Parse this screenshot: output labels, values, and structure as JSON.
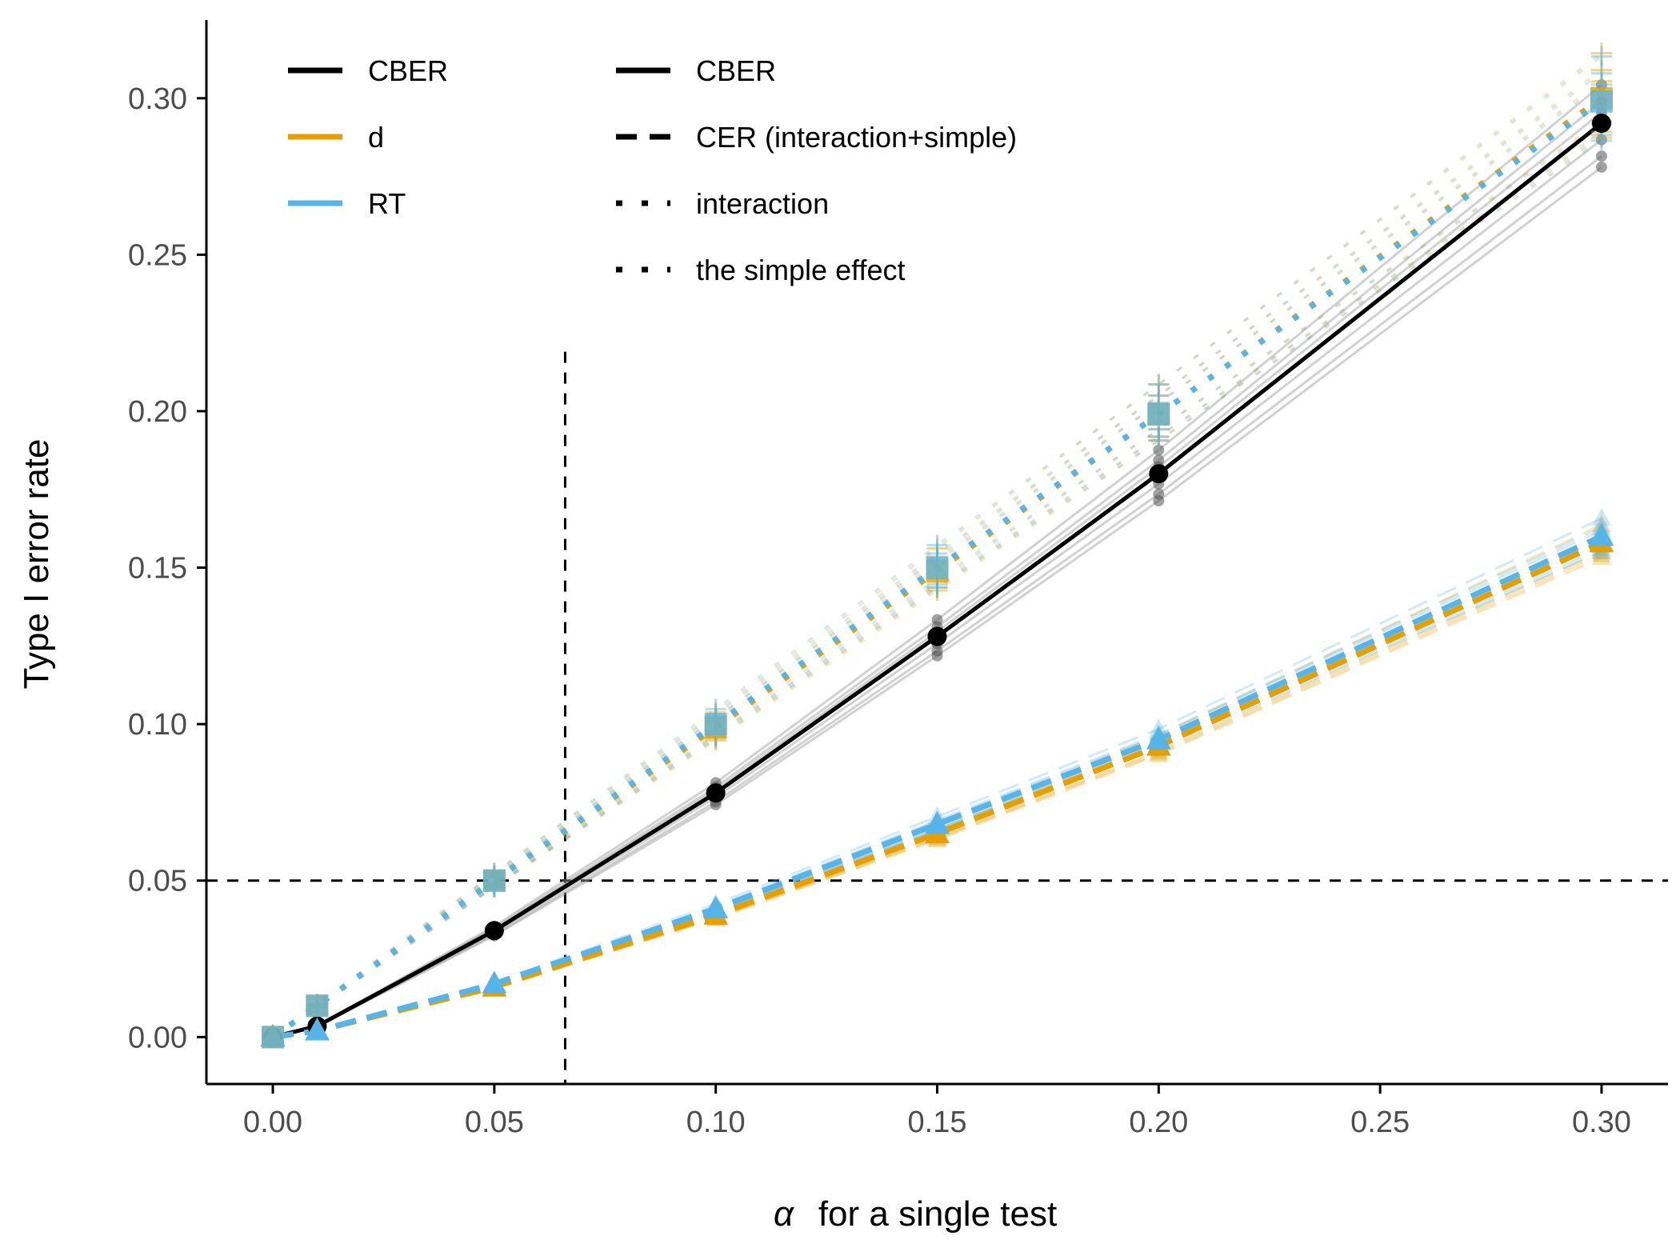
{
  "chart_data": {
    "type": "line",
    "xlabel_symbol": "α",
    "xlabel": "for a single test",
    "ylabel": "Type I error rate",
    "xlim": [
      -0.015,
      0.315
    ],
    "ylim": [
      -0.015,
      0.325
    ],
    "x_ticks": [
      "0.00",
      "0.05",
      "0.10",
      "0.15",
      "0.20",
      "0.25",
      "0.30"
    ],
    "y_ticks": [
      "0.00",
      "0.05",
      "0.10",
      "0.15",
      "0.20",
      "0.25",
      "0.30"
    ],
    "x_tick_values": [
      0,
      0.05,
      0.1,
      0.15,
      0.2,
      0.25,
      0.3
    ],
    "y_tick_values": [
      0,
      0.05,
      0.1,
      0.15,
      0.2,
      0.25,
      0.3
    ],
    "reference_lines": {
      "horizontal_y": 0.05,
      "vertical_x": 0.066
    },
    "x": [
      0,
      0.01,
      0.05,
      0.1,
      0.15,
      0.2,
      0.3
    ],
    "series": [
      {
        "name": "CBER",
        "measure": "CBER",
        "linetype": "solid",
        "color": "#000000",
        "marker": "circle",
        "values": [
          0,
          0.0035,
          0.034,
          0.078,
          0.128,
          0.18,
          0.292
        ]
      },
      {
        "measure": "d",
        "linetype": "dashed",
        "color": "#E69F00",
        "marker": "triangle",
        "values": [
          0,
          0.002,
          0.016,
          0.039,
          0.065,
          0.093,
          0.158
        ]
      },
      {
        "measure": "RT",
        "linetype": "dashed",
        "color": "#56B4E9",
        "marker": "triangle",
        "values": [
          0,
          0.002,
          0.017,
          0.041,
          0.068,
          0.095,
          0.16
        ]
      },
      {
        "measure": "d",
        "linetype": "dotted",
        "color": "#E69F00",
        "marker": "square",
        "values": [
          0,
          0.01,
          0.05,
          0.099,
          0.149,
          0.199,
          0.3
        ]
      },
      {
        "measure": "RT",
        "linetype": "dotted",
        "color": "#56B4E9",
        "marker": "square",
        "values": [
          0,
          0.01,
          0.05,
          0.1,
          0.15,
          0.199,
          0.299
        ]
      }
    ],
    "replicates": {
      "cber_offsets": [
        0.004,
        -0.003,
        0.007,
        -0.006,
        0.002,
        -0.008
      ],
      "dashed_offsets": [
        0.003,
        -0.003,
        0.006,
        -0.005,
        0.002,
        -0.004
      ],
      "dotted_offsets": [
        0.005,
        -0.004,
        0.008,
        -0.006,
        0.003,
        -0.007
      ]
    },
    "legend": {
      "color_title": "",
      "linetype_title": "",
      "color_items": [
        {
          "label": "CBER",
          "color": "#000000"
        },
        {
          "label": "d",
          "color": "#E69F00"
        },
        {
          "label": "RT",
          "color": "#56B4E9"
        }
      ],
      "linetype_items": [
        {
          "label": "CBER",
          "linetype": "solid"
        },
        {
          "label": "CER (interaction+simple)",
          "linetype": "dashed"
        },
        {
          "label": "interaction",
          "linetype": "dotted"
        },
        {
          "label": "the simple effect",
          "linetype": "dotted"
        }
      ]
    }
  }
}
